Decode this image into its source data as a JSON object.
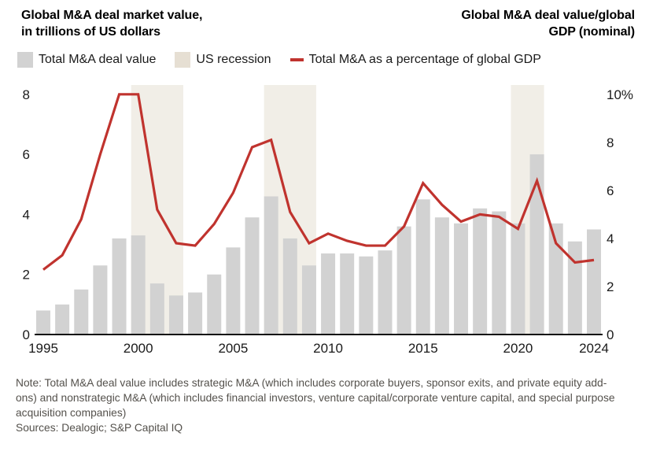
{
  "header": {
    "left_title_line1": "Global M&A deal market value,",
    "left_title_line2": "in trillions of US dollars",
    "right_title_line1": "Global M&A deal value/global",
    "right_title_line2": "GDP (nominal)"
  },
  "legend": {
    "items": [
      {
        "label": "Total M&A deal value",
        "swatch": "bar",
        "color": "#d2d2d2"
      },
      {
        "label": "US recession",
        "swatch": "band",
        "color": "#e6dfd3"
      },
      {
        "label": "Total M&A as a percentage of global GDP",
        "swatch": "line",
        "color": "#c0332e"
      }
    ]
  },
  "chart_data": {
    "type": "bar+line",
    "x": [
      1995,
      1996,
      1997,
      1998,
      1999,
      2000,
      2001,
      2002,
      2003,
      2004,
      2005,
      2006,
      2007,
      2008,
      2009,
      2010,
      2011,
      2012,
      2013,
      2014,
      2015,
      2016,
      2017,
      2018,
      2019,
      2020,
      2021,
      2022,
      2023,
      2024
    ],
    "series": [
      {
        "name": "Total M&A deal value",
        "type": "bar",
        "axis": "left",
        "unit": "trillions of US dollars",
        "values": [
          0.8,
          1.0,
          1.5,
          2.3,
          3.2,
          3.3,
          1.7,
          1.3,
          1.4,
          2.0,
          2.9,
          3.9,
          4.6,
          3.2,
          2.3,
          2.7,
          2.7,
          2.6,
          2.8,
          3.6,
          4.5,
          3.9,
          3.7,
          4.2,
          4.1,
          3.7,
          6.0,
          3.7,
          3.1,
          3.5
        ]
      },
      {
        "name": "Total M&A as a percentage of global GDP",
        "type": "line",
        "axis": "right",
        "unit": "% of global GDP (nominal)",
        "values": [
          2.7,
          3.3,
          4.8,
          7.5,
          10.0,
          10.0,
          5.2,
          3.8,
          3.7,
          4.6,
          5.9,
          7.8,
          8.1,
          5.1,
          3.8,
          4.2,
          3.9,
          3.7,
          3.7,
          4.5,
          6.3,
          5.4,
          4.7,
          5.0,
          4.9,
          4.4,
          6.4,
          3.8,
          3.0,
          3.1
        ]
      }
    ],
    "recessions": [
      {
        "name": "US recession",
        "start": 2000,
        "end": 2002
      },
      {
        "name": "US recession",
        "start": 2007,
        "end": 2009
      },
      {
        "name": "US recession",
        "start": 2020,
        "end": 2021
      }
    ],
    "left_axis": {
      "range": [
        0,
        8
      ],
      "ticks": [
        0,
        2,
        4,
        6,
        8
      ]
    },
    "right_axis": {
      "range": [
        0,
        10
      ],
      "ticks": [
        0,
        2,
        4,
        6,
        8,
        10
      ],
      "tick_labels": [
        "0",
        "2",
        "4",
        "6",
        "8",
        "10%"
      ]
    },
    "x_ticks": [
      1995,
      2000,
      2005,
      2010,
      2015,
      2020,
      2024
    ],
    "grid": false,
    "legend_position": "top",
    "colors": {
      "bar": "#d2d2d2",
      "recession_band": "#f1eee7",
      "line": "#c0332e",
      "axis_line": "#111111",
      "axis_text": "#1a1a1a"
    }
  },
  "note": {
    "text": "Note: Total M&A deal value includes strategic M&A (which includes corporate buyers, sponsor exits, and private equity add-ons) and nonstrategic M&A (which includes financial investors, venture capital/corporate venture capital, and special purpose acquisition companies)",
    "sources": "Sources: Dealogic; S&P Capital IQ"
  }
}
